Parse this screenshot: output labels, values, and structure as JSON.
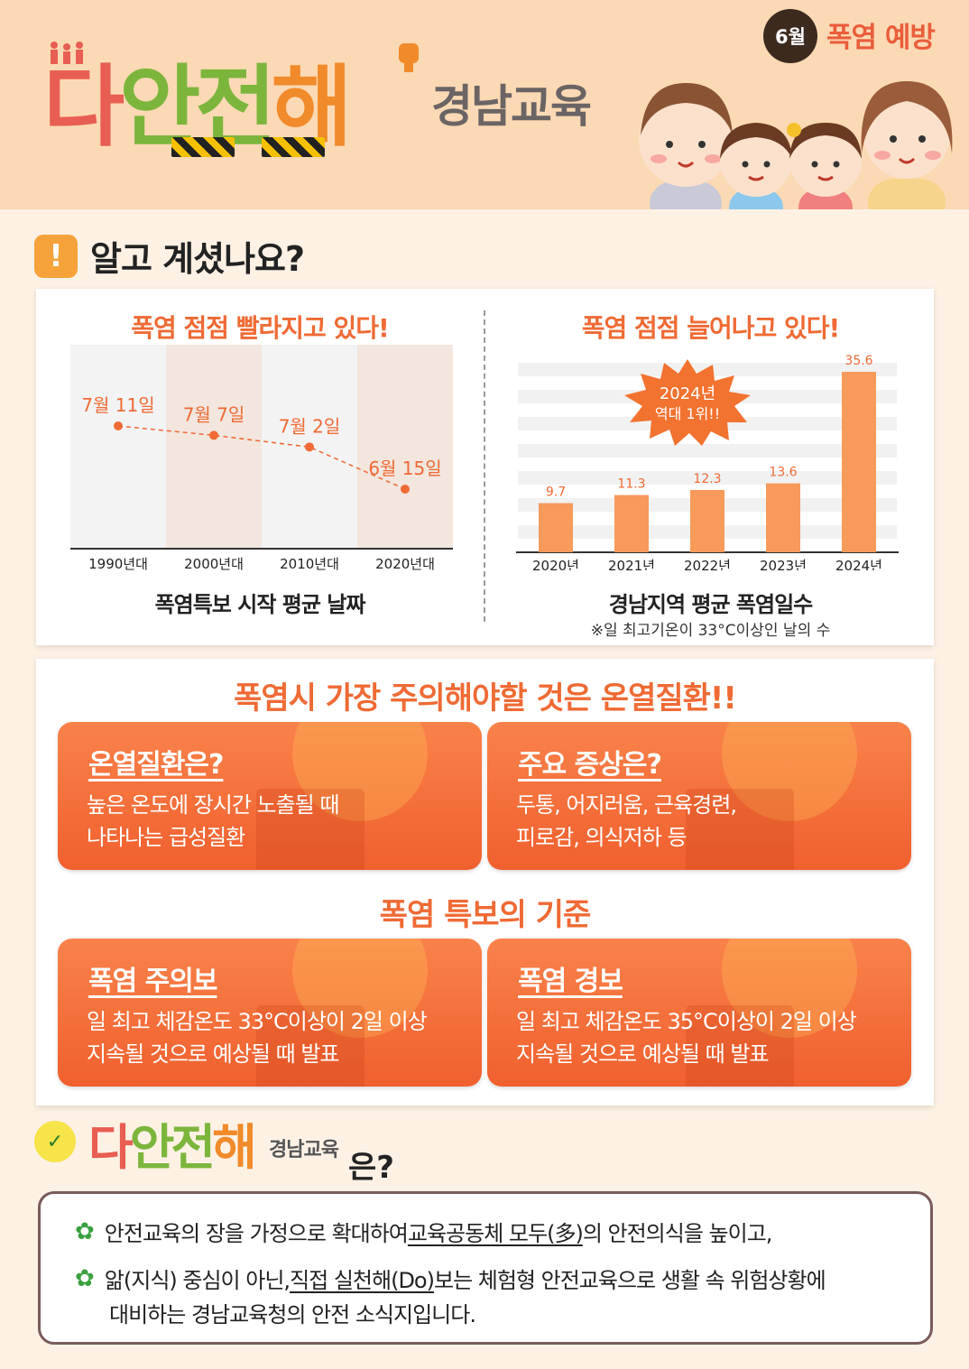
{
  "header": {
    "logo_chars": [
      "다",
      "안",
      "전",
      "해"
    ],
    "logo_sub": "경남교육",
    "month": "6월",
    "topic": "폭염 예방"
  },
  "section1": {
    "title": "알고 계셨나요?",
    "left_chart": {
      "title": "폭염 점점 빨라지고 있다!",
      "caption": "폭염특보 시작 평균 날짜"
    },
    "right_chart": {
      "title": "폭염 점점 늘어나고 있다!",
      "caption": "경남지역 평균 폭염일수",
      "note": "※일 최고기온이 33°C이상인 날의 수",
      "burst_line1": "2024년",
      "burst_line2": "역대 1위!!"
    }
  },
  "chart_data": [
    {
      "type": "line",
      "title": "폭염 점점 빨라지고 있다!",
      "xlabel": "폭염특보 시작 평균 날짜",
      "categories": [
        "1990년대",
        "2000년대",
        "2010년대",
        "2020년대"
      ],
      "labels": [
        "7월 11일",
        "7월 7일",
        "7월 2일",
        "6월 15일"
      ],
      "values": [
        11,
        7,
        2,
        -16
      ]
    },
    {
      "type": "bar",
      "title": "폭염 점점 늘어나고 있다!",
      "xlabel": "경남지역 평균 폭염일수",
      "categories": [
        "2020년",
        "2021년",
        "2022년",
        "2023년",
        "2024년"
      ],
      "values": [
        9.7,
        11.3,
        12.3,
        13.6,
        35.6
      ],
      "ylim": [
        0,
        40
      ],
      "color": "#f79a5a"
    }
  ],
  "section2": {
    "heading": "폭염시 가장 주의해야할 것은 온열질환!!",
    "box1": {
      "title": "온열질환은?",
      "line1": "높은 온도에 장시간 노출될 때",
      "line2": "나타나는 급성질환"
    },
    "box2": {
      "title": "주요 증상은?",
      "line1": "두통, 어지러움, 근육경련,",
      "line2": "피로감, 의식저하 등"
    },
    "heading2": "폭염 특보의 기준",
    "box3": {
      "title": "폭염 주의보",
      "line1": "일 최고 체감온도 33°C이상이 2일 이상",
      "line2": "지속될 것으로 예상될 때 발표"
    },
    "box4": {
      "title": "폭염 경보",
      "line1": "일 최고 체감온도 35°C이상이 2일 이상",
      "line2": "지속될 것으로 예상될 때 발표"
    }
  },
  "section3": {
    "logo_sub": "경남교육",
    "suffix": "은?",
    "line1_a": "안전교육의 장을 가정으로 확대하여 ",
    "line1_u": "교육공동체 모두(多)",
    "line1_b": "의 안전의식을 높이고,",
    "line2_a": "앎(지식) 중심이 아닌, ",
    "line2_u": "직접 실천해(Do)",
    "line2_b": " 보는 체험형 안전교육으로 생활 속 위험상황에",
    "line3": "대비하는 경남교육청의 안전 소식지입니다."
  },
  "colors": {
    "accent": "#ef6a34",
    "bar": "#f79a5a",
    "header_bg": "#fbd9b4",
    "page_bg": "#fdf1e4"
  }
}
